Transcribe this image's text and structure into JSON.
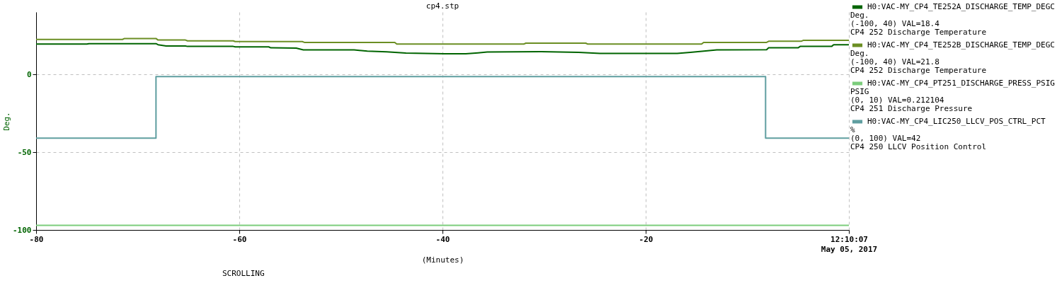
{
  "chart_data": {
    "type": "line",
    "title": "cp4.stp",
    "xlabel": "(Minutes)",
    "ylabel": "Deg.",
    "xlim": [
      -80,
      0
    ],
    "xticks": [
      -80,
      -60,
      -40,
      -20,
      {
        "value": 0,
        "label": "12:10:07\nMay 05, 2017"
      }
    ],
    "ylim": [
      -100,
      40
    ],
    "yticks": [
      -100,
      -50,
      0
    ],
    "grid": true,
    "legend": "top right",
    "series": [
      {
        "name": "H0:VAC-MY_CP4_TE252A_DISCHARGE_TEMP_DEGC",
        "color": "#006400",
        "x": [
          -80,
          -75,
          -74.8,
          -68.2,
          -68,
          -67.2,
          -65.3,
          -65.1,
          -60.6,
          -60.4,
          -57.1,
          -56.9,
          -54.4,
          -53.7,
          -48.7,
          -47.4,
          -45.5,
          -43.6,
          -39.8,
          -37.7,
          -36.5,
          -35.6,
          -30.3,
          -26.6,
          -24.5,
          -16.9,
          -15.6,
          -14.1,
          -13,
          -8.1,
          -7.9,
          -5,
          -4.8,
          -1.7,
          -1.5,
          0
        ],
        "values": [
          19.4,
          19.4,
          19.7,
          19.7,
          19,
          18.2,
          18.2,
          17.9,
          17.9,
          17.6,
          17.6,
          17,
          16.8,
          15.7,
          15.7,
          14.9,
          14.4,
          13.6,
          13.2,
          13.2,
          13.8,
          14.3,
          14.6,
          14.1,
          13.4,
          13.4,
          14.1,
          15,
          15.7,
          15.8,
          17,
          17,
          17.9,
          17.9,
          19,
          19
        ]
      },
      {
        "name": "H0:VAC-MY_CP4_TE252B_DISCHARGE_TEMP_DEGC",
        "color": "#6b8e23",
        "x": [
          -80,
          -71.5,
          -71.3,
          -68.2,
          -68,
          -65.3,
          -65.1,
          -60.6,
          -60.4,
          -53.8,
          -53.6,
          -44.7,
          -44.5,
          -32,
          -31.8,
          -25.9,
          -25.7,
          -14.5,
          -14.3,
          -8.1,
          -7.9,
          -4.7,
          -4.5,
          0
        ],
        "values": [
          22.4,
          22.4,
          23,
          23,
          22,
          22,
          21.5,
          21.5,
          21,
          21,
          20.5,
          20.5,
          19.4,
          19.4,
          20,
          20,
          19.4,
          19.4,
          20.5,
          20.5,
          21.2,
          21.2,
          21.8,
          21.8
        ]
      },
      {
        "name": "H0:VAC-MY_CP4_PT251_DISCHARGE_PRESS_PSIG",
        "color": "#7ccd7c",
        "x": [
          -80,
          -60,
          -40,
          -20,
          0
        ],
        "values": [
          -97,
          -97,
          -97,
          -97,
          -97
        ]
      },
      {
        "name": "H0:VAC-MY_CP4_LIC250_LLCV_POS_CTRL_PCT",
        "type": "step",
        "color": "#5f9ea0",
        "x": [
          -80,
          -68.2,
          -8.2,
          0
        ],
        "values": [
          -41,
          -1.5,
          -41,
          -41
        ]
      }
    ],
    "annotations": [
      "Deg.",
      "(-100, 40) VAL=18.4",
      "CP4 252 Discharge Temperature",
      "Deg.",
      "(-100, 40) VAL=21.8",
      "CP4 252 Discharge Temperature",
      "PSIG",
      "(0, 10) VAL=0.212104",
      "CP4 251 Discharge Pressure",
      "%",
      "(0, 100) VAL=42",
      "CP4 250 LLCV Position Control",
      "SCROLLING"
    ]
  }
}
